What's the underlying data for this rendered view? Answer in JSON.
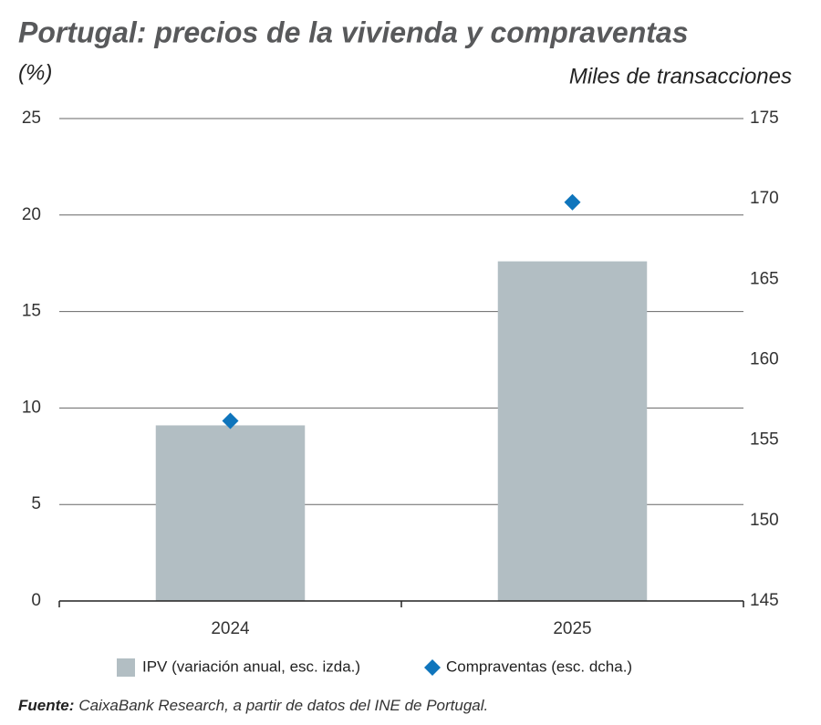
{
  "chart_data": {
    "type": "bar",
    "title": "Portugal: precios de la vivienda y compraventas",
    "y_label": "(%)",
    "y2_label": "Miles de transacciones",
    "categories": [
      "2024",
      "2025"
    ],
    "series": [
      {
        "name": "IPV (variación anual, esc. izda.)",
        "type": "bar",
        "color": "#b2bec3",
        "values": [
          9.1,
          17.6
        ]
      },
      {
        "name": "Compraventas (esc. dcha.)",
        "type": "scatter",
        "marker": "diamond",
        "axis": "y2",
        "color": "#0f75bc",
        "values": [
          156.2,
          169.8
        ]
      }
    ],
    "ylim": [
      0,
      25
    ],
    "yticks": [
      0,
      5,
      10,
      15,
      20,
      25
    ],
    "y2lim": [
      145,
      175
    ],
    "y2ticks": [
      145,
      150,
      155,
      160,
      165,
      170,
      175
    ],
    "grid": true,
    "source_label": "Fuente:",
    "source": "CaixaBank Research, a partir de datos del INE de Portugal."
  }
}
